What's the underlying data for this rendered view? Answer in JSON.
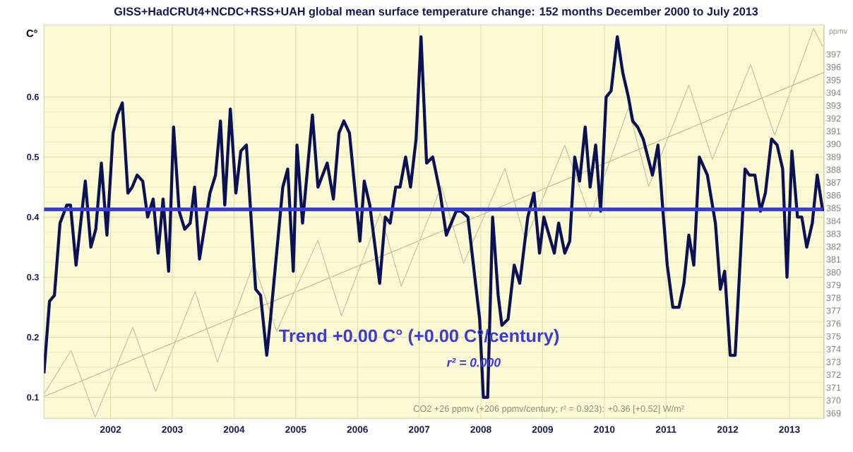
{
  "chart_data": {
    "type": "line",
    "title": "GISS+HadCRUt4+NCDC+RSS+UAH global mean surface temperature change: 152 months December 2000 to July 2013",
    "ylabel": "C°",
    "y2label": "ppmv",
    "xlim": [
      2000.92,
      2013.56
    ],
    "xticks": [
      2002,
      2003,
      2004,
      2005,
      2006,
      2007,
      2008,
      2009,
      2010,
      2011,
      2012,
      2013
    ],
    "ylim": [
      0.065,
      0.72
    ],
    "yticks": [
      0.1,
      0.2,
      0.3,
      0.4,
      0.5,
      0.6
    ],
    "y2lim": [
      368.6,
      399.3
    ],
    "y2ticks": [
      369,
      370,
      371,
      372,
      373,
      374,
      375,
      376,
      377,
      378,
      379,
      380,
      381,
      382,
      383,
      384,
      385,
      386,
      387,
      388,
      389,
      390,
      391,
      392,
      393,
      394,
      395,
      396,
      397
    ],
    "grid": true,
    "marker": "none",
    "series": [
      {
        "color": "#0b1155",
        "x": [
          2000.92,
          2001.01,
          2001.09,
          2001.18,
          2001.29,
          2001.35,
          2001.44,
          2001.59,
          2001.68,
          2001.76,
          2001.85,
          2001.94,
          2002.04,
          2002.11,
          2002.19,
          2002.28,
          2002.35,
          2002.43,
          2002.52,
          2002.6,
          2002.69,
          2002.77,
          2002.85,
          2002.94,
          2003.02,
          2003.11,
          2003.2,
          2003.29,
          2003.36,
          2003.44,
          2003.61,
          2003.7,
          2003.78,
          2003.85,
          2003.94,
          2004.03,
          2004.11,
          2004.2,
          2004.35,
          2004.43,
          2004.53,
          2004.59,
          2004.79,
          2004.87,
          2004.96,
          2005.02,
          2005.11,
          2005.27,
          2005.36,
          2005.51,
          2005.61,
          2005.7,
          2005.78,
          2005.87,
          2006.04,
          2006.11,
          2006.2,
          2006.36,
          2006.45,
          2006.53,
          2006.62,
          2006.69,
          2006.78,
          2006.86,
          2006.95,
          2007.03,
          2007.12,
          2007.22,
          2007.34,
          2007.44,
          2007.6,
          2007.68,
          2007.79,
          2007.98,
          2008.04,
          2008.11,
          2008.19,
          2008.28,
          2008.34,
          2008.44,
          2008.54,
          2008.63,
          2008.76,
          2008.86,
          2008.95,
          2009.02,
          2009.19,
          2009.26,
          2009.36,
          2009.44,
          2009.52,
          2009.6,
          2009.69,
          2009.77,
          2009.86,
          2009.94,
          2010.03,
          2010.11,
          2010.21,
          2010.3,
          2010.39,
          2010.46,
          2010.54,
          2010.63,
          2010.78,
          2010.87,
          2010.95,
          2011.02,
          2011.11,
          2011.21,
          2011.29,
          2011.37,
          2011.45,
          2011.54,
          2011.67,
          2011.8,
          2011.88,
          2011.95,
          2012.04,
          2012.12,
          2012.28,
          2012.35,
          2012.44,
          2012.53,
          2012.61,
          2012.71,
          2012.8,
          2012.89,
          2012.96,
          2013.04,
          2013.13,
          2013.2,
          2013.28,
          2013.37,
          2013.45,
          2013.54
        ],
        "values": [
          0.14,
          0.26,
          0.27,
          0.39,
          0.42,
          0.42,
          0.32,
          0.46,
          0.35,
          0.38,
          0.49,
          0.37,
          0.54,
          0.57,
          0.59,
          0.44,
          0.45,
          0.47,
          0.46,
          0.4,
          0.43,
          0.34,
          0.43,
          0.31,
          0.55,
          0.41,
          0.38,
          0.39,
          0.45,
          0.33,
          0.44,
          0.47,
          0.56,
          0.42,
          0.58,
          0.44,
          0.51,
          0.52,
          0.28,
          0.27,
          0.17,
          0.23,
          0.45,
          0.48,
          0.31,
          0.52,
          0.39,
          0.57,
          0.45,
          0.49,
          0.43,
          0.54,
          0.56,
          0.54,
          0.36,
          0.46,
          0.42,
          0.29,
          0.4,
          0.39,
          0.45,
          0.45,
          0.5,
          0.45,
          0.53,
          0.7,
          0.49,
          0.5,
          0.44,
          0.37,
          0.41,
          0.41,
          0.4,
          0.23,
          0.1,
          0.1,
          0.4,
          0.27,
          0.22,
          0.23,
          0.32,
          0.29,
          0.4,
          0.44,
          0.34,
          0.4,
          0.34,
          0.39,
          0.34,
          0.36,
          0.5,
          0.46,
          0.55,
          0.45,
          0.52,
          0.41,
          0.6,
          0.61,
          0.7,
          0.64,
          0.6,
          0.56,
          0.55,
          0.53,
          0.47,
          0.52,
          0.41,
          0.32,
          0.25,
          0.25,
          0.29,
          0.37,
          0.32,
          0.5,
          0.47,
          0.39,
          0.28,
          0.31,
          0.17,
          0.17,
          0.48,
          0.47,
          0.47,
          0.41,
          0.44,
          0.53,
          0.52,
          0.48,
          0.3,
          0.51,
          0.4,
          0.4,
          0.35,
          0.39,
          0.47,
          0.41
        ]
      },
      {
        "color": "#3b3bd6",
        "x": [
          2000.92,
          2013.54
        ],
        "values": [
          0.413,
          0.413
        ]
      },
      {
        "color": "#c4c1a3",
        "axis": "y2",
        "x": [
          2000.92,
          2001.36,
          2001.75,
          2002.36,
          2002.73,
          2003.37,
          2003.73,
          2004.32,
          2004.69,
          2005.36,
          2005.74,
          2006.37,
          2006.71,
          2007.36,
          2007.72,
          2008.39,
          2008.72,
          2009.36,
          2009.77,
          2010.39,
          2010.72,
          2011.37,
          2011.75,
          2012.37,
          2012.76,
          2013.39,
          2013.54
        ],
        "values": [
          370.5,
          373.9,
          368.7,
          375.7,
          370.7,
          378.5,
          373.0,
          380.7,
          375.4,
          382.5,
          376.6,
          384.6,
          378.9,
          386.7,
          380.7,
          388.1,
          382.5,
          389.9,
          384.3,
          392.8,
          386.7,
          394.6,
          388.8,
          396.2,
          390.7,
          399.0,
          397.6
        ]
      },
      {
        "color": "#bdb894",
        "axis": "y2",
        "x": [
          2000.92,
          2013.56
        ],
        "values": [
          370.3,
          395.6
        ]
      }
    ],
    "annotations": [
      "Trend +0.00 C° (+0.00 C°/century)",
      "r² = 0.000",
      "CO2 +26 ppmv (+206 ppmv/century; r² = 0.923): +0.36 [+0.52] W/m²"
    ]
  }
}
